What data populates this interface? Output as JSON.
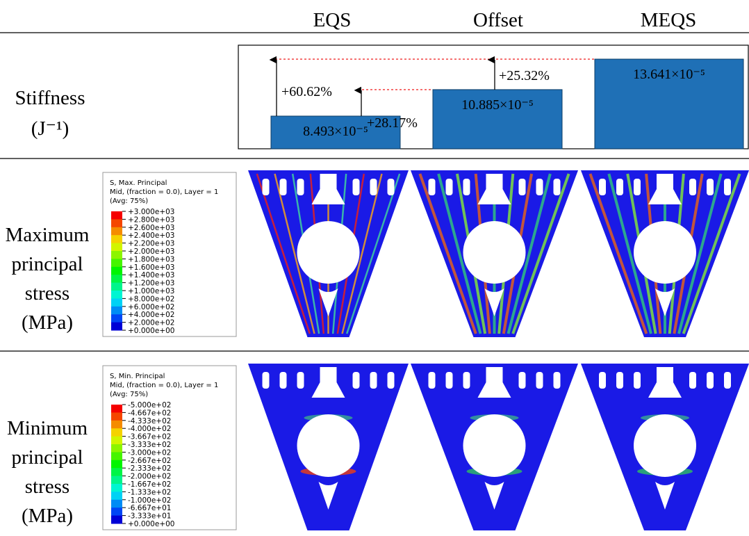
{
  "column_headers": [
    "EQS",
    "Offset",
    "MEQS"
  ],
  "stiffness": {
    "type": "bar",
    "label": "Stiffness",
    "unit": "(J⁻¹)",
    "values": [
      8.493e-05,
      0.00010885,
      0.00013641
    ],
    "value_labels": [
      "8.493×10⁻⁵",
      "10.885×10⁻⁵",
      "13.641×10⁻⁵"
    ],
    "color": "#1f70b6",
    "ylim": [
      5.54e-05,
      0.000149
    ],
    "annotations": [
      "+60.62%",
      "+28.17%",
      "+25.32%"
    ]
  },
  "rows": [
    {
      "label": [
        "Maximum",
        "principal",
        "stress",
        "(MPa)"
      ],
      "legend": {
        "title": [
          "S, Max. Principal",
          "Mid, (fraction = 0.0), Layer = 1",
          "(Avg: 75%)"
        ],
        "ticks": [
          "+3.000e+03",
          "+2.800e+03",
          "+2.600e+03",
          "+2.400e+03",
          "+2.200e+03",
          "+2.000e+03",
          "+1.800e+03",
          "+1.600e+03",
          "+1.400e+03",
          "+1.200e+03",
          "+1.000e+03",
          "+8.000e+02",
          "+6.000e+02",
          "+4.000e+02",
          "+2.000e+02",
          "+0.000e+00"
        ]
      }
    },
    {
      "label": [
        "Minimum",
        "principal",
        "stress",
        "(MPa)"
      ],
      "legend": {
        "title": [
          "S, Min. Principal",
          "Mid, (fraction = 0.0), Layer = 1",
          "(Avg: 75%)"
        ],
        "ticks": [
          "-5.000e+02",
          "-4.667e+02",
          "-4.333e+02",
          "-4.000e+02",
          "-3.667e+02",
          "-3.333e+02",
          "-3.000e+02",
          "-2.667e+02",
          "-2.333e+02",
          "-2.000e+02",
          "-1.667e+02",
          "-1.333e+02",
          "-1.000e+02",
          "-6.667e+01",
          "-3.333e+01",
          "+0.000e+00"
        ]
      }
    }
  ]
}
